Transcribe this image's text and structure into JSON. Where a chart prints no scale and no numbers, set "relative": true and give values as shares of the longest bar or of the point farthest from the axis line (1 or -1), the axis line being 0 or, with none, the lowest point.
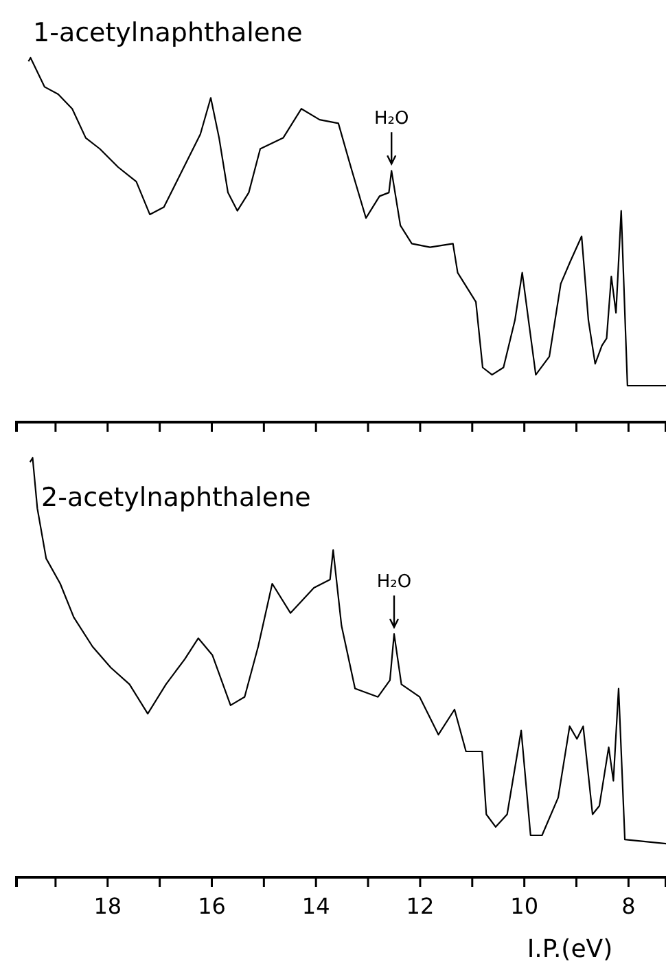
{
  "chart_data": [
    {
      "type": "line",
      "title": "1-acetylnaphthalene",
      "relative": true,
      "color": "#000000",
      "line_style": "solid",
      "tick_labels": false,
      "xlim": [
        19.75,
        7.28
      ],
      "xticks": [
        {
          "value": 19,
          "label": null
        },
        18,
        {
          "value": 17,
          "label": null
        },
        16,
        {
          "value": 15,
          "label": null
        },
        14,
        {
          "value": 13,
          "label": null
        },
        12,
        {
          "value": 11,
          "label": null
        },
        10,
        {
          "value": 9,
          "label": null
        },
        8
      ],
      "x": [
        19.52,
        19.48,
        19.21,
        18.95,
        18.68,
        18.42,
        18.15,
        17.8,
        17.45,
        17.19,
        16.92,
        16.57,
        16.22,
        16.02,
        15.86,
        15.69,
        15.51,
        15.29,
        15.07,
        14.63,
        14.28,
        13.93,
        13.57,
        13.31,
        13.04,
        12.78,
        12.6,
        12.55,
        12.38,
        12.16,
        11.81,
        11.37,
        11.28,
        10.93,
        10.8,
        10.62,
        10.4,
        10.18,
        10.04,
        9.92,
        9.78,
        9.52,
        9.3,
        9.12,
        8.9,
        8.77,
        8.64,
        8.51,
        8.42,
        8.33,
        8.24,
        8.14,
        8.02,
        7.28
      ],
      "values": [
        0.99,
        1.0,
        0.92,
        0.9,
        0.86,
        0.78,
        0.75,
        0.7,
        0.66,
        0.57,
        0.59,
        0.69,
        0.79,
        0.89,
        0.78,
        0.63,
        0.58,
        0.63,
        0.75,
        0.78,
        0.86,
        0.83,
        0.82,
        0.69,
        0.56,
        0.62,
        0.63,
        0.69,
        0.54,
        0.49,
        0.48,
        0.49,
        0.41,
        0.33,
        0.15,
        0.13,
        0.15,
        0.28,
        0.41,
        0.28,
        0.13,
        0.18,
        0.38,
        0.44,
        0.51,
        0.28,
        0.16,
        0.21,
        0.23,
        0.4,
        0.3,
        0.58,
        0.1,
        0.1
      ],
      "annotations": [
        {
          "text": "H₂O",
          "x": 12.55,
          "y": 0.69
        }
      ]
    },
    {
      "type": "line",
      "title": "2-acetylnaphthalene",
      "xlabel": "I.P.(eV)",
      "relative": true,
      "color": "#000000",
      "line_style": "solid",
      "xlim": [
        19.75,
        7.28
      ],
      "xticks": [
        {
          "value": 19,
          "label": null
        },
        18,
        {
          "value": 17,
          "label": null
        },
        16,
        {
          "value": 15,
          "label": null
        },
        14,
        {
          "value": 13,
          "label": null
        },
        12,
        {
          "value": 11,
          "label": null
        },
        10,
        {
          "value": 9,
          "label": null
        },
        8
      ],
      "x": [
        19.49,
        19.44,
        19.35,
        19.18,
        18.91,
        18.65,
        18.29,
        17.94,
        17.58,
        17.23,
        16.88,
        16.52,
        16.26,
        15.99,
        15.64,
        15.37,
        15.11,
        14.84,
        14.49,
        14.04,
        13.73,
        13.67,
        13.51,
        13.25,
        12.81,
        12.58,
        12.5,
        12.36,
        12.01,
        11.65,
        11.34,
        11.12,
        10.81,
        10.73,
        10.55,
        10.33,
        10.06,
        9.88,
        9.66,
        9.35,
        9.13,
        8.99,
        8.87,
        8.69,
        8.56,
        8.38,
        8.29,
        8.19,
        8.07,
        7.28
      ],
      "values": [
        0.99,
        1.0,
        0.88,
        0.76,
        0.7,
        0.62,
        0.55,
        0.5,
        0.46,
        0.39,
        0.46,
        0.52,
        0.57,
        0.53,
        0.41,
        0.43,
        0.55,
        0.7,
        0.63,
        0.69,
        0.71,
        0.78,
        0.6,
        0.45,
        0.43,
        0.47,
        0.58,
        0.46,
        0.43,
        0.34,
        0.4,
        0.3,
        0.3,
        0.15,
        0.12,
        0.15,
        0.35,
        0.1,
        0.1,
        0.19,
        0.36,
        0.33,
        0.36,
        0.15,
        0.17,
        0.31,
        0.23,
        0.45,
        0.09,
        0.08
      ],
      "annotations": [
        {
          "text": "H₂O",
          "x": 12.5,
          "y": 0.58
        }
      ]
    }
  ]
}
